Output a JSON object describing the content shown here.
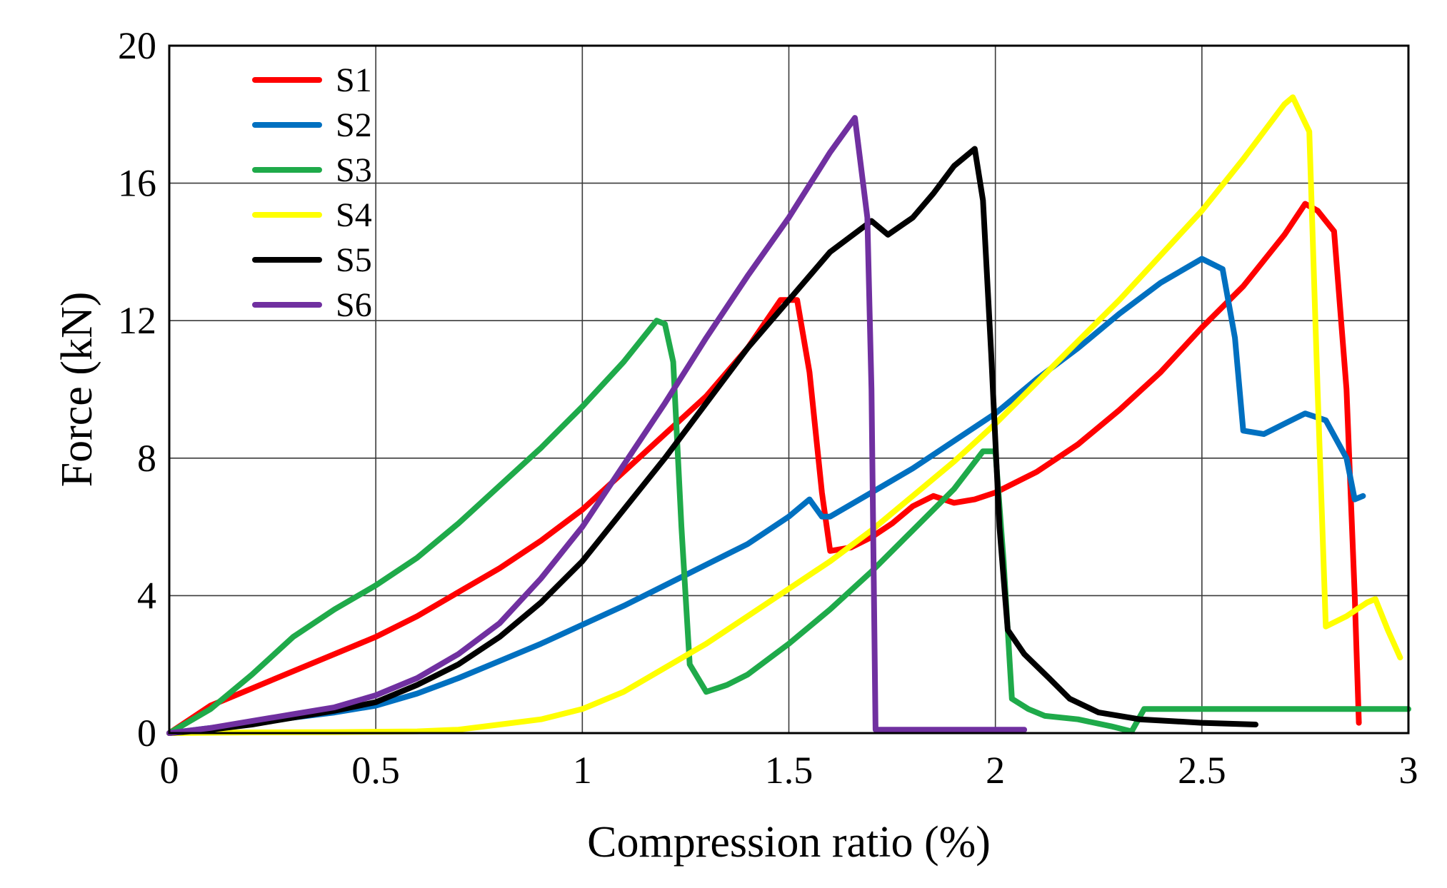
{
  "chart_data": {
    "type": "line",
    "title": "",
    "xlabel": "Compression ratio (%)",
    "ylabel": "Force (kN)",
    "xlim": [
      0,
      3
    ],
    "ylim": [
      0,
      20
    ],
    "grid": true,
    "legend_position": "top-left",
    "x_ticks": [
      0,
      0.5,
      1,
      1.5,
      2,
      2.5,
      3
    ],
    "x_tick_labels": [
      "0",
      "0.5",
      "1",
      "1.5",
      "2",
      "2.5",
      "3"
    ],
    "y_ticks": [
      0,
      4,
      8,
      12,
      16,
      20
    ],
    "y_tick_labels": [
      "0",
      "4",
      "8",
      "12",
      "16",
      "20"
    ],
    "series": [
      {
        "name": "S1",
        "color": "#ff0000",
        "points": [
          [
            0,
            0
          ],
          [
            0.1,
            0.8
          ],
          [
            0.2,
            1.3
          ],
          [
            0.3,
            1.8
          ],
          [
            0.4,
            2.3
          ],
          [
            0.5,
            2.8
          ],
          [
            0.6,
            3.4
          ],
          [
            0.7,
            4.1
          ],
          [
            0.8,
            4.8
          ],
          [
            0.9,
            5.6
          ],
          [
            1.0,
            6.5
          ],
          [
            1.1,
            7.6
          ],
          [
            1.2,
            8.7
          ],
          [
            1.3,
            9.8
          ],
          [
            1.4,
            11.2
          ],
          [
            1.48,
            12.6
          ],
          [
            1.52,
            12.6
          ],
          [
            1.55,
            10.5
          ],
          [
            1.58,
            7.0
          ],
          [
            1.6,
            5.3
          ],
          [
            1.65,
            5.4
          ],
          [
            1.7,
            5.7
          ],
          [
            1.75,
            6.1
          ],
          [
            1.8,
            6.6
          ],
          [
            1.85,
            6.9
          ],
          [
            1.9,
            6.7
          ],
          [
            1.95,
            6.8
          ],
          [
            2.0,
            7.0
          ],
          [
            2.1,
            7.6
          ],
          [
            2.2,
            8.4
          ],
          [
            2.3,
            9.4
          ],
          [
            2.4,
            10.5
          ],
          [
            2.5,
            11.8
          ],
          [
            2.6,
            13.0
          ],
          [
            2.7,
            14.5
          ],
          [
            2.75,
            15.4
          ],
          [
            2.78,
            15.2
          ],
          [
            2.82,
            14.6
          ],
          [
            2.85,
            10.0
          ],
          [
            2.87,
            4.0
          ],
          [
            2.88,
            0.3
          ]
        ]
      },
      {
        "name": "S2",
        "color": "#0070c0",
        "points": [
          [
            0,
            0
          ],
          [
            0.1,
            0.15
          ],
          [
            0.2,
            0.3
          ],
          [
            0.3,
            0.45
          ],
          [
            0.4,
            0.6
          ],
          [
            0.5,
            0.8
          ],
          [
            0.6,
            1.15
          ],
          [
            0.7,
            1.6
          ],
          [
            0.8,
            2.1
          ],
          [
            0.9,
            2.6
          ],
          [
            1.0,
            3.15
          ],
          [
            1.1,
            3.7
          ],
          [
            1.2,
            4.3
          ],
          [
            1.3,
            4.9
          ],
          [
            1.4,
            5.5
          ],
          [
            1.5,
            6.3
          ],
          [
            1.55,
            6.8
          ],
          [
            1.58,
            6.3
          ],
          [
            1.6,
            6.3
          ],
          [
            1.7,
            7.0
          ],
          [
            1.8,
            7.7
          ],
          [
            1.9,
            8.5
          ],
          [
            2.0,
            9.3
          ],
          [
            2.1,
            10.3
          ],
          [
            2.2,
            11.2
          ],
          [
            2.3,
            12.2
          ],
          [
            2.4,
            13.1
          ],
          [
            2.5,
            13.8
          ],
          [
            2.55,
            13.5
          ],
          [
            2.58,
            11.5
          ],
          [
            2.6,
            8.8
          ],
          [
            2.65,
            8.7
          ],
          [
            2.7,
            9.0
          ],
          [
            2.75,
            9.3
          ],
          [
            2.8,
            9.1
          ],
          [
            2.85,
            8.0
          ],
          [
            2.87,
            6.8
          ],
          [
            2.89,
            6.9
          ]
        ]
      },
      {
        "name": "S3",
        "color": "#1faa4a",
        "points": [
          [
            0,
            0
          ],
          [
            0.1,
            0.7
          ],
          [
            0.2,
            1.7
          ],
          [
            0.3,
            2.8
          ],
          [
            0.4,
            3.6
          ],
          [
            0.5,
            4.3
          ],
          [
            0.6,
            5.1
          ],
          [
            0.7,
            6.1
          ],
          [
            0.8,
            7.2
          ],
          [
            0.9,
            8.3
          ],
          [
            1.0,
            9.5
          ],
          [
            1.1,
            10.8
          ],
          [
            1.18,
            12.0
          ],
          [
            1.2,
            11.9
          ],
          [
            1.22,
            10.8
          ],
          [
            1.24,
            6.0
          ],
          [
            1.26,
            2.0
          ],
          [
            1.3,
            1.2
          ],
          [
            1.35,
            1.4
          ],
          [
            1.4,
            1.7
          ],
          [
            1.5,
            2.6
          ],
          [
            1.6,
            3.6
          ],
          [
            1.7,
            4.7
          ],
          [
            1.8,
            5.9
          ],
          [
            1.9,
            7.1
          ],
          [
            1.97,
            8.2
          ],
          [
            2.0,
            8.2
          ],
          [
            2.02,
            5.0
          ],
          [
            2.04,
            1.0
          ],
          [
            2.08,
            0.7
          ],
          [
            2.12,
            0.5
          ],
          [
            2.2,
            0.4
          ],
          [
            2.28,
            0.2
          ],
          [
            2.33,
            0.05
          ],
          [
            2.36,
            0.7
          ],
          [
            2.45,
            0.7
          ],
          [
            2.6,
            0.7
          ],
          [
            2.8,
            0.7
          ],
          [
            3.0,
            0.7
          ]
        ]
      },
      {
        "name": "S4",
        "color": "#ffff00",
        "points": [
          [
            0,
            0
          ],
          [
            0.2,
            0.02
          ],
          [
            0.4,
            0.03
          ],
          [
            0.6,
            0.05
          ],
          [
            0.7,
            0.1
          ],
          [
            0.8,
            0.25
          ],
          [
            0.9,
            0.4
          ],
          [
            1.0,
            0.7
          ],
          [
            1.1,
            1.2
          ],
          [
            1.2,
            1.9
          ],
          [
            1.3,
            2.6
          ],
          [
            1.4,
            3.4
          ],
          [
            1.5,
            4.2
          ],
          [
            1.6,
            5.0
          ],
          [
            1.7,
            5.9
          ],
          [
            1.8,
            6.9
          ],
          [
            1.9,
            7.9
          ],
          [
            2.0,
            9.0
          ],
          [
            2.1,
            10.2
          ],
          [
            2.2,
            11.4
          ],
          [
            2.3,
            12.6
          ],
          [
            2.4,
            13.9
          ],
          [
            2.5,
            15.2
          ],
          [
            2.6,
            16.7
          ],
          [
            2.7,
            18.3
          ],
          [
            2.72,
            18.5
          ],
          [
            2.76,
            17.5
          ],
          [
            2.78,
            10.0
          ],
          [
            2.8,
            3.1
          ],
          [
            2.85,
            3.4
          ],
          [
            2.9,
            3.8
          ],
          [
            2.92,
            3.9
          ],
          [
            2.95,
            3.0
          ],
          [
            2.98,
            2.2
          ]
        ]
      },
      {
        "name": "S5",
        "color": "#000000",
        "points": [
          [
            0,
            0
          ],
          [
            0.1,
            0.1
          ],
          [
            0.2,
            0.25
          ],
          [
            0.3,
            0.45
          ],
          [
            0.4,
            0.65
          ],
          [
            0.5,
            0.9
          ],
          [
            0.6,
            1.4
          ],
          [
            0.7,
            2.0
          ],
          [
            0.8,
            2.8
          ],
          [
            0.9,
            3.8
          ],
          [
            1.0,
            5.0
          ],
          [
            1.1,
            6.5
          ],
          [
            1.2,
            8.0
          ],
          [
            1.3,
            9.6
          ],
          [
            1.4,
            11.2
          ],
          [
            1.5,
            12.6
          ],
          [
            1.6,
            14.0
          ],
          [
            1.7,
            14.9
          ],
          [
            1.74,
            14.5
          ],
          [
            1.8,
            15.0
          ],
          [
            1.85,
            15.7
          ],
          [
            1.9,
            16.5
          ],
          [
            1.95,
            17.0
          ],
          [
            1.97,
            15.5
          ],
          [
            1.99,
            11.0
          ],
          [
            2.01,
            6.0
          ],
          [
            2.03,
            3.0
          ],
          [
            2.07,
            2.3
          ],
          [
            2.13,
            1.6
          ],
          [
            2.18,
            1.0
          ],
          [
            2.25,
            0.6
          ],
          [
            2.35,
            0.4
          ],
          [
            2.5,
            0.3
          ],
          [
            2.63,
            0.25
          ]
        ]
      },
      {
        "name": "S6",
        "color": "#7030a0",
        "points": [
          [
            0,
            0
          ],
          [
            0.1,
            0.15
          ],
          [
            0.2,
            0.35
          ],
          [
            0.3,
            0.55
          ],
          [
            0.4,
            0.75
          ],
          [
            0.5,
            1.1
          ],
          [
            0.6,
            1.6
          ],
          [
            0.7,
            2.3
          ],
          [
            0.8,
            3.2
          ],
          [
            0.9,
            4.5
          ],
          [
            1.0,
            6.0
          ],
          [
            1.1,
            7.8
          ],
          [
            1.2,
            9.6
          ],
          [
            1.3,
            11.5
          ],
          [
            1.4,
            13.3
          ],
          [
            1.5,
            15.0
          ],
          [
            1.6,
            16.9
          ],
          [
            1.66,
            17.9
          ],
          [
            1.69,
            15.0
          ],
          [
            1.7,
            10.0
          ],
          [
            1.71,
            0.1
          ],
          [
            1.8,
            0.1
          ],
          [
            2.0,
            0.1
          ],
          [
            2.07,
            0.1
          ]
        ]
      }
    ]
  }
}
